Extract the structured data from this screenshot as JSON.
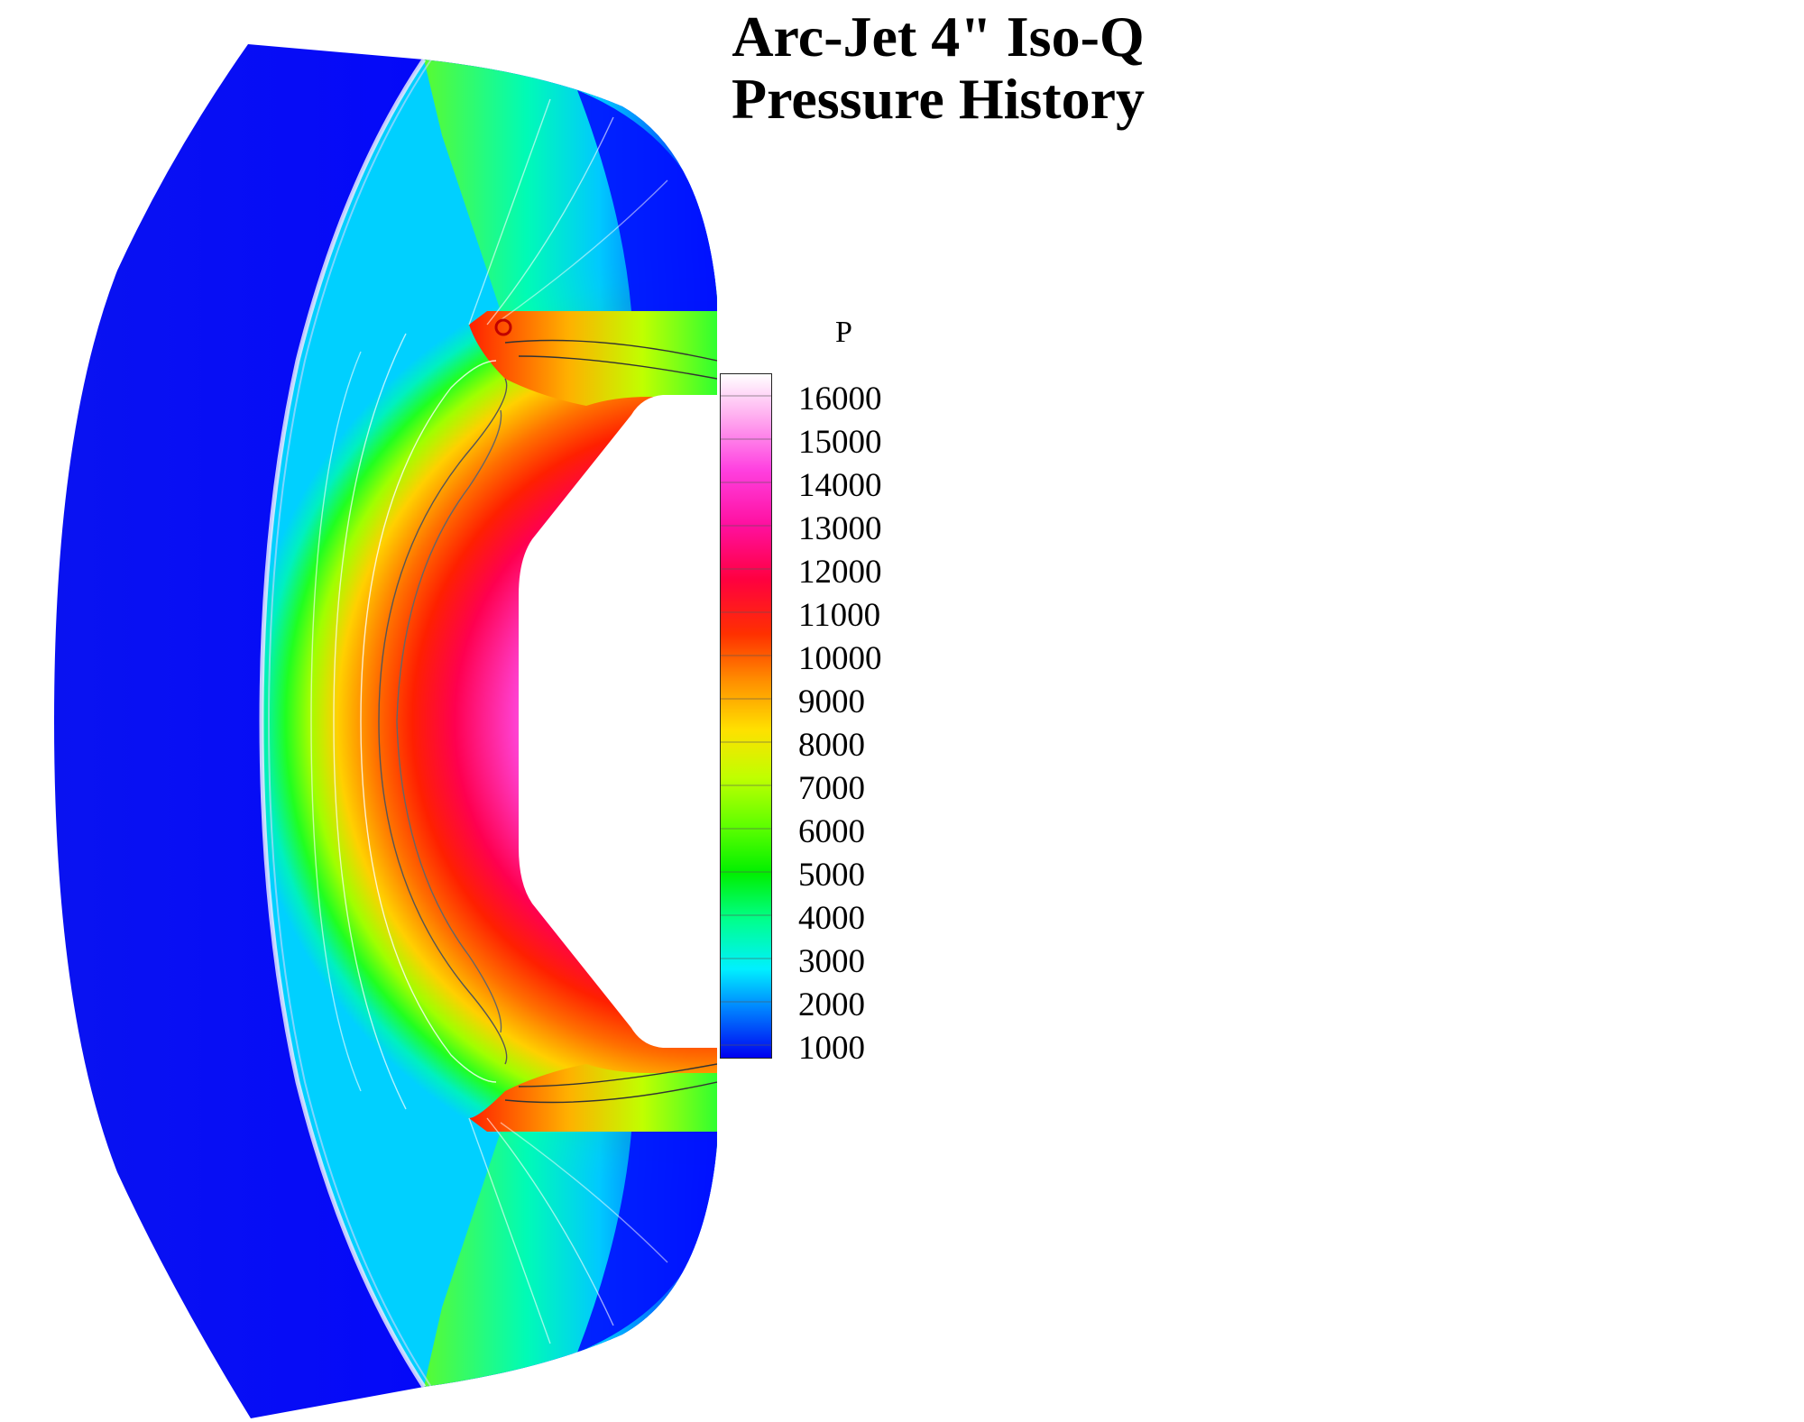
{
  "title": {
    "line1": "Arc-Jet 4\" Iso-Q",
    "line2": "Pressure History"
  },
  "legend": {
    "variable": "P",
    "ticks": [
      "16000",
      "15000",
      "14000",
      "13000",
      "12000",
      "11000",
      "10000",
      "9000",
      "8000",
      "7000",
      "6000",
      "5000",
      "4000",
      "3000",
      "2000",
      "1000"
    ]
  },
  "colors": {
    "low": "#0000ff",
    "mid_low": "#00ffff",
    "mid": "#00ff00",
    "mid_high": "#ffff00",
    "high_orange": "#ff8000",
    "high_red": "#ff0000",
    "higher": "#ff00c0",
    "peak": "#ffffff",
    "probe_marker": "#c00000"
  }
}
